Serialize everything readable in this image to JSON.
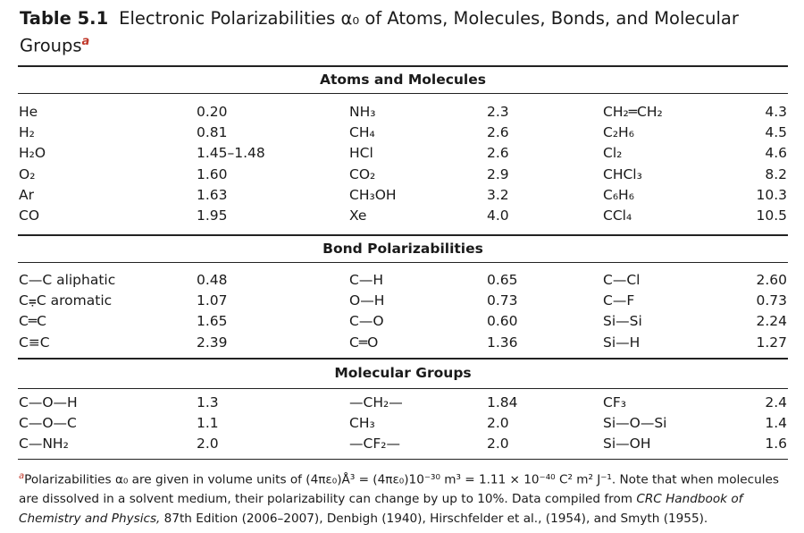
{
  "title": {
    "number": "Table 5.1",
    "text": "Electronic Polarizabilities α₀ of Atoms, Molecules, Bonds, and Molecular Groups",
    "footnote_mark": "a"
  },
  "sections": [
    {
      "heading": "Atoms and Molecules",
      "rows": [
        [
          "He",
          "0.20",
          "NH₃",
          "2.3",
          "CH₂═CH₂",
          "4.3"
        ],
        [
          "H₂",
          "0.81",
          "CH₄",
          "2.6",
          "C₂H₆",
          "4.5"
        ],
        [
          "H₂O",
          "1.45–1.48",
          "HCl",
          "2.6",
          "Cl₂",
          "4.6"
        ],
        [
          "O₂",
          "1.60",
          "CO₂",
          "2.9",
          "CHCl₃",
          "8.2"
        ],
        [
          "Ar",
          "1.63",
          "CH₃OH",
          "3.2",
          "C₆H₆",
          "10.3"
        ],
        [
          "CO",
          "1.95",
          "Xe",
          "4.0",
          "CCl₄",
          "10.5"
        ]
      ]
    },
    {
      "heading": "Bond Polarizabilities",
      "rows": [
        [
          "C—C aliphatic",
          "0.48",
          "C—H",
          "0.65",
          "C—Cl",
          "2.60"
        ],
        [
          "C⩦C aromatic",
          "1.07",
          "O—H",
          "0.73",
          "C—F",
          "0.73"
        ],
        [
          "C═C",
          "1.65",
          "C—O",
          "0.60",
          "Si—Si",
          "2.24"
        ],
        [
          "C≡C",
          "2.39",
          "C═O",
          "1.36",
          "Si—H",
          "1.27"
        ]
      ]
    },
    {
      "heading": "Molecular Groups",
      "rows": [
        [
          "C—O—H",
          "1.3",
          "—CH₂—",
          "1.84",
          "CF₃",
          "2.4"
        ],
        [
          "C—O—C",
          "1.1",
          "CH₃",
          "2.0",
          "Si—O—Si",
          "1.4"
        ],
        [
          "C—NH₂",
          "2.0",
          "—CF₂—",
          "2.0",
          "Si—OH",
          "1.6"
        ]
      ]
    }
  ],
  "footnote": {
    "mark": "a",
    "part1": "Polarizabilities α₀ are given in volume units of (4πε₀)Å³ = (4πε₀)10⁻³⁰ m³ = 1.11 × 10⁻⁴⁰ C² m² J⁻¹. Note that when molecules are dissolved in a solvent medium, their polarizability can change by up to 10%. Data compiled from ",
    "source_italic": "CRC Handbook of Chemistry and Physics,",
    "part2": " 87th Edition (2006–2007), Denbigh (1940), Hirschfelder et al., (1954), and Smyth (1955)."
  }
}
